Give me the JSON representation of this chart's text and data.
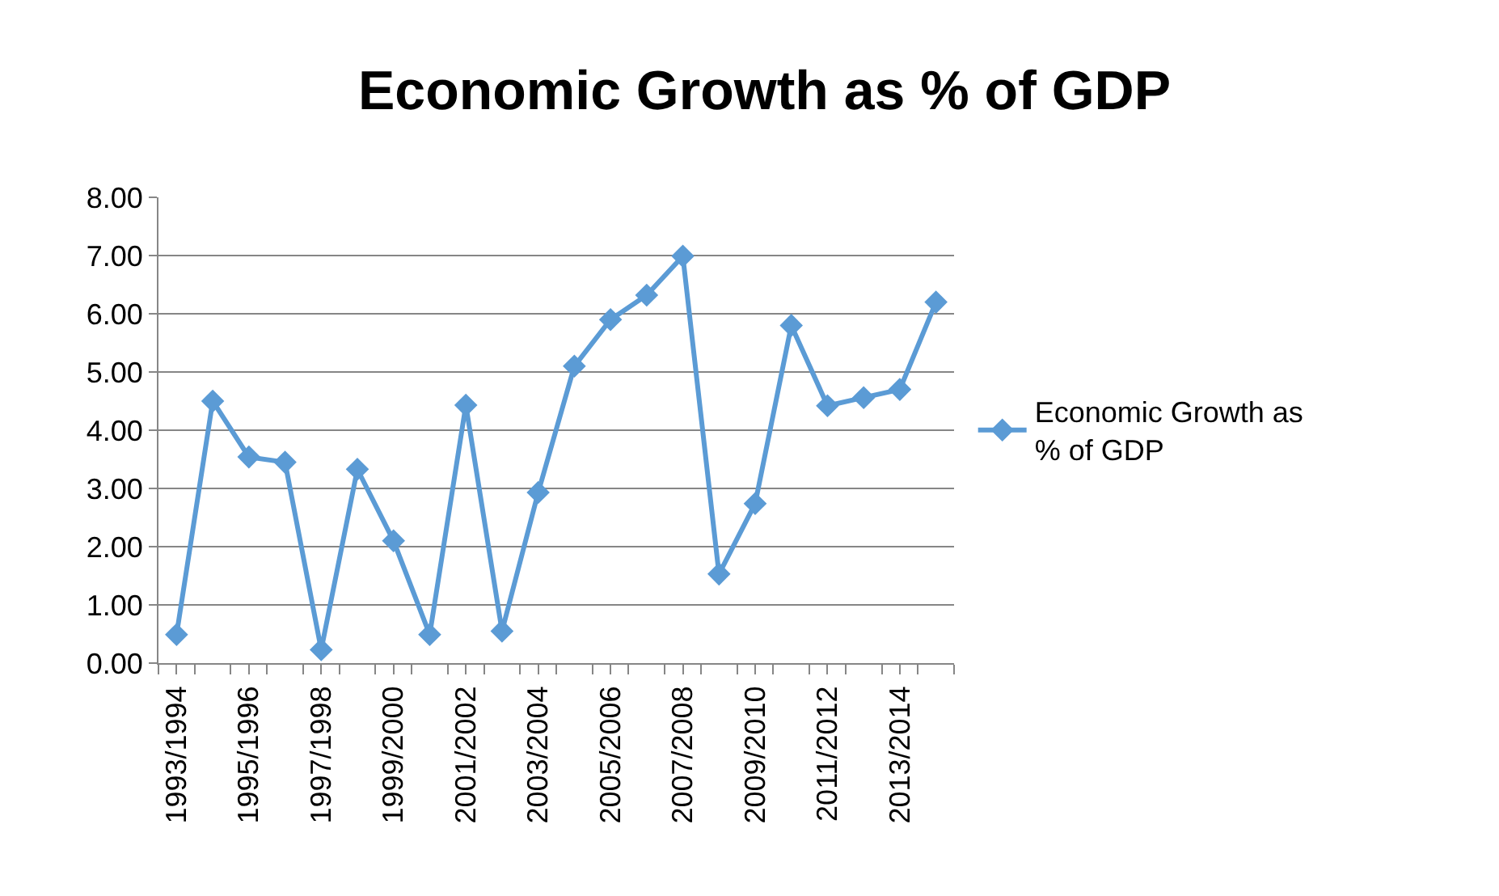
{
  "chart_data": {
    "type": "line",
    "title": "Economic Growth as % of GDP",
    "categories": [
      "1993/1994",
      null,
      "1995/1996",
      null,
      "1997/1998",
      null,
      "1999/2000",
      null,
      "2001/2002",
      null,
      "2003/2004",
      null,
      "2005/2006",
      null,
      "2007/2008",
      null,
      "2009/2010",
      null,
      "2011/2012",
      null,
      "2013/2014",
      null
    ],
    "series": [
      {
        "name": "Economic Growth as % of GDP",
        "color": "#5b9bd5",
        "values": [
          0.49,
          4.5,
          3.54,
          3.45,
          0.23,
          3.33,
          2.1,
          0.49,
          4.43,
          0.55,
          2.93,
          5.1,
          5.9,
          6.32,
          6.99,
          1.53,
          2.74,
          5.8,
          4.42,
          4.56,
          4.7,
          6.2
        ]
      }
    ],
    "ylim": [
      0,
      8
    ],
    "yticks": [
      {
        "value": 0,
        "label": "0.00"
      },
      {
        "value": 1,
        "label": "1.00"
      },
      {
        "value": 2,
        "label": "2.00"
      },
      {
        "value": 3,
        "label": "3.00"
      },
      {
        "value": 4,
        "label": "4.00"
      },
      {
        "value": 5,
        "label": "5.00"
      },
      {
        "value": 6,
        "label": "6.00"
      },
      {
        "value": 7,
        "label": "7.00"
      },
      {
        "value": 8,
        "label": "8.00"
      }
    ],
    "grid": "y",
    "legend": "right",
    "marker": "diamond",
    "line_style": "solid"
  }
}
